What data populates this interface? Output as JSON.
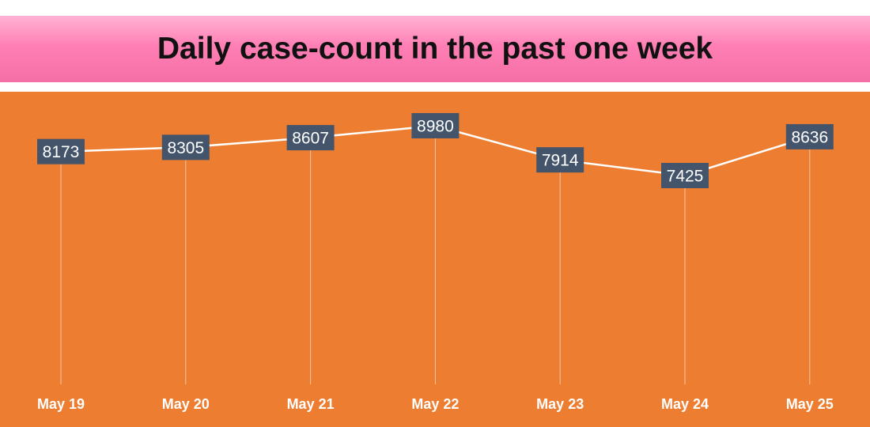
{
  "title": "Daily case-count in the past one week",
  "colors": {
    "background": "#ed7d31",
    "banner": "#ff7fb4",
    "line": "#ffffff",
    "label_box": "#44546a",
    "label_text": "#ffffff"
  },
  "chart_data": {
    "type": "line",
    "title": "Daily case-count in the past one week",
    "categories": [
      "May 19",
      "May 20",
      "May 21",
      "May 22",
      "May 23",
      "May 24",
      "May 25"
    ],
    "values": [
      8173,
      8305,
      8607,
      8980,
      7914,
      7425,
      8636
    ],
    "data_labels": true,
    "drop_lines": true,
    "grid": false,
    "legend": "none",
    "xlabel": "",
    "ylabel": ""
  }
}
